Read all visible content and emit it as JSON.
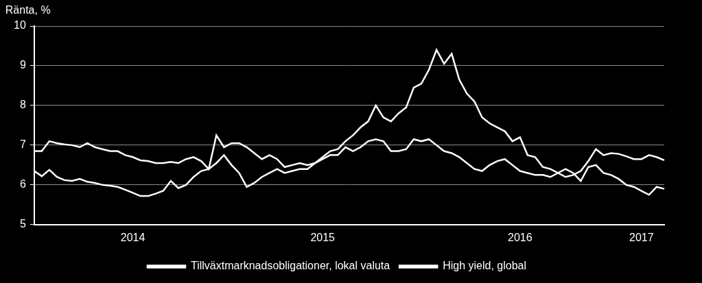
{
  "chart_data": {
    "type": "line",
    "y_label": "Ränta, %",
    "categories": [
      null,
      null,
      null,
      null,
      null,
      null,
      null,
      null,
      null,
      null,
      null,
      null,
      null,
      "2014",
      null,
      null,
      null,
      null,
      null,
      null,
      null,
      null,
      null,
      null,
      null,
      null,
      null,
      null,
      null,
      null,
      null,
      null,
      null,
      null,
      null,
      null,
      null,
      null,
      "2015",
      null,
      null,
      null,
      null,
      null,
      null,
      null,
      null,
      null,
      null,
      null,
      null,
      null,
      null,
      null,
      null,
      null,
      null,
      null,
      null,
      null,
      null,
      null,
      null,
      null,
      "2016",
      null,
      null,
      null,
      null,
      null,
      null,
      null,
      null,
      null,
      null,
      null,
      null,
      null,
      null,
      null,
      "2017",
      null,
      null,
      null
    ],
    "series": [
      {
        "name": "Tillväxtmarknadsobligationer, lokal valuta",
        "color": "#ffffff",
        "values": [
          6.85,
          6.85,
          7.1,
          7.05,
          7.02,
          7.0,
          6.95,
          7.05,
          6.95,
          6.9,
          6.85,
          6.85,
          6.75,
          6.7,
          6.62,
          6.6,
          6.55,
          6.55,
          6.58,
          6.55,
          6.65,
          6.7,
          6.6,
          6.4,
          7.25,
          6.95,
          7.05,
          7.05,
          6.95,
          6.8,
          6.65,
          6.75,
          6.65,
          6.45,
          6.5,
          6.55,
          6.5,
          6.55,
          6.65,
          6.75,
          6.75,
          6.95,
          6.85,
          6.95,
          7.1,
          7.15,
          7.1,
          6.85,
          6.85,
          6.9,
          7.15,
          7.1,
          7.15,
          7.0,
          6.85,
          6.8,
          6.7,
          6.55,
          6.4,
          6.35,
          6.5,
          6.6,
          6.65,
          6.5,
          6.35,
          6.3,
          6.25,
          6.25,
          6.2,
          6.3,
          6.2,
          6.25,
          6.35,
          6.6,
          6.9,
          6.75,
          6.8,
          6.78,
          6.72,
          6.65,
          6.65,
          6.75,
          6.7,
          6.62
        ]
      },
      {
        "name": "High yield, global",
        "color": "#ffffff",
        "values": [
          6.35,
          6.22,
          6.38,
          6.2,
          6.12,
          6.1,
          6.15,
          6.08,
          6.05,
          6.0,
          5.98,
          5.95,
          5.88,
          5.8,
          5.72,
          5.72,
          5.78,
          5.85,
          6.1,
          5.92,
          6.0,
          6.2,
          6.35,
          6.4,
          6.55,
          6.75,
          6.5,
          6.3,
          5.95,
          6.05,
          6.2,
          6.3,
          6.4,
          6.3,
          6.35,
          6.4,
          6.4,
          6.55,
          6.7,
          6.85,
          6.9,
          7.1,
          7.25,
          7.45,
          7.6,
          8.0,
          7.7,
          7.6,
          7.8,
          7.95,
          8.45,
          8.55,
          8.9,
          9.4,
          9.05,
          9.3,
          8.65,
          8.3,
          8.1,
          7.7,
          7.55,
          7.45,
          7.35,
          7.1,
          7.2,
          6.75,
          6.7,
          6.45,
          6.4,
          6.3,
          6.4,
          6.3,
          6.1,
          6.45,
          6.5,
          6.3,
          6.25,
          6.15,
          6.0,
          5.95,
          5.85,
          5.75,
          5.95,
          5.9
        ]
      }
    ],
    "ylim": [
      5,
      10
    ],
    "yticks": [
      5,
      6,
      7,
      8,
      9,
      10
    ],
    "grid": true,
    "legend": "bottom"
  }
}
